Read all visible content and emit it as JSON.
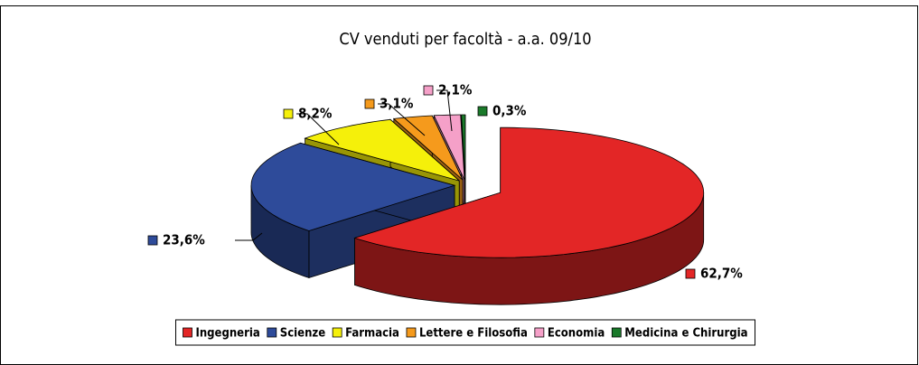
{
  "chart_data": {
    "type": "pie3d",
    "title": "CV venduti per facoltà - a.a. 09/10",
    "categories": [
      "Ingegneria",
      "Scienze",
      "Farmacia",
      "Lettere e Filosofia",
      "Economia",
      "Medicina e Chirurgia"
    ],
    "values": [
      62.7,
      23.6,
      8.2,
      3.1,
      2.1,
      0.3
    ],
    "value_labels": [
      "62,7%",
      "23,6%",
      "8,2%",
      "3,1%",
      "2,1%",
      "0,3%"
    ],
    "colors": [
      "#e32626",
      "#2e4b9a",
      "#f5f00a",
      "#f59a1c",
      "#f5a0c8",
      "#1a7a2a"
    ],
    "legend": "bottom"
  }
}
